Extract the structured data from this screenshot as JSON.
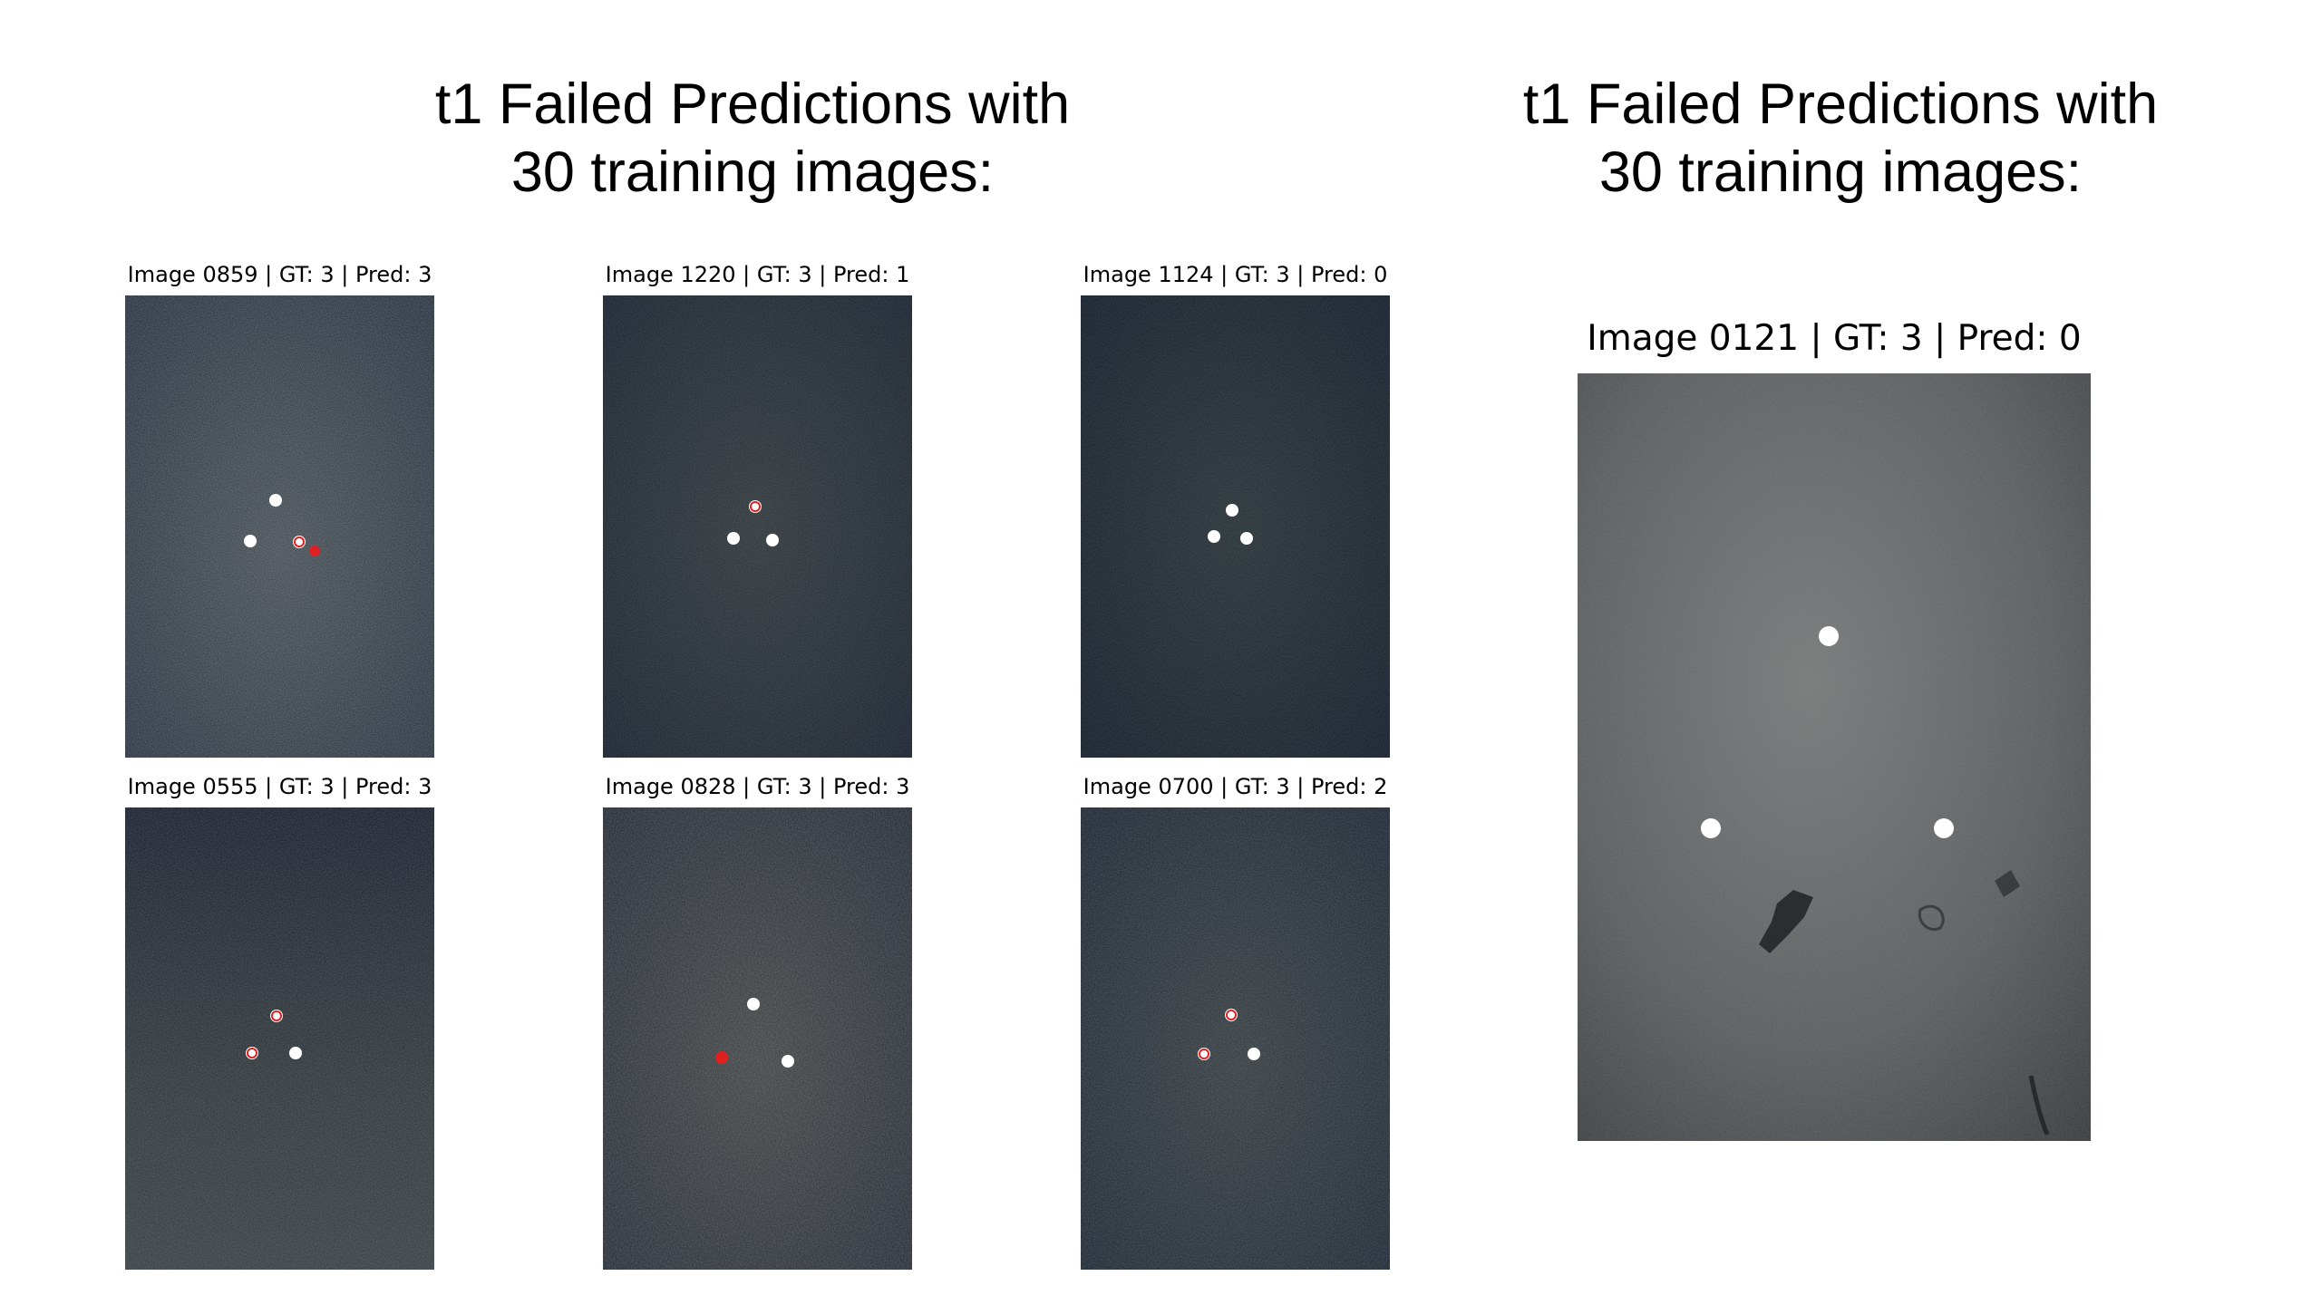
{
  "headings": {
    "left": [
      "t1 Failed Predictions with",
      "30 training images:"
    ],
    "right": [
      "t1 Failed Predictions with",
      "30 training images:"
    ]
  },
  "panels": [
    {
      "caption": "Image 0859 | GT: 3 | Pred: 3"
    },
    {
      "caption": "Image 1220 | GT: 3 | Pred: 1"
    },
    {
      "caption": "Image 1124 | GT: 3 | Pred: 0"
    },
    {
      "caption": "Image 0555 | GT: 3 | Pred: 3"
    },
    {
      "caption": "Image 0828 | GT: 3 | Pred: 3"
    },
    {
      "caption": "Image 0700 | GT: 3 | Pred: 2"
    }
  ],
  "big_panel": {
    "caption": "Image 0121 | GT: 3 | Pred: 0"
  },
  "colors": {
    "gt_marker": "#ffffff",
    "pred_marker": "#e02020",
    "seafloor_dark": "#1c2531",
    "seafloor_light": "#5b6167"
  }
}
